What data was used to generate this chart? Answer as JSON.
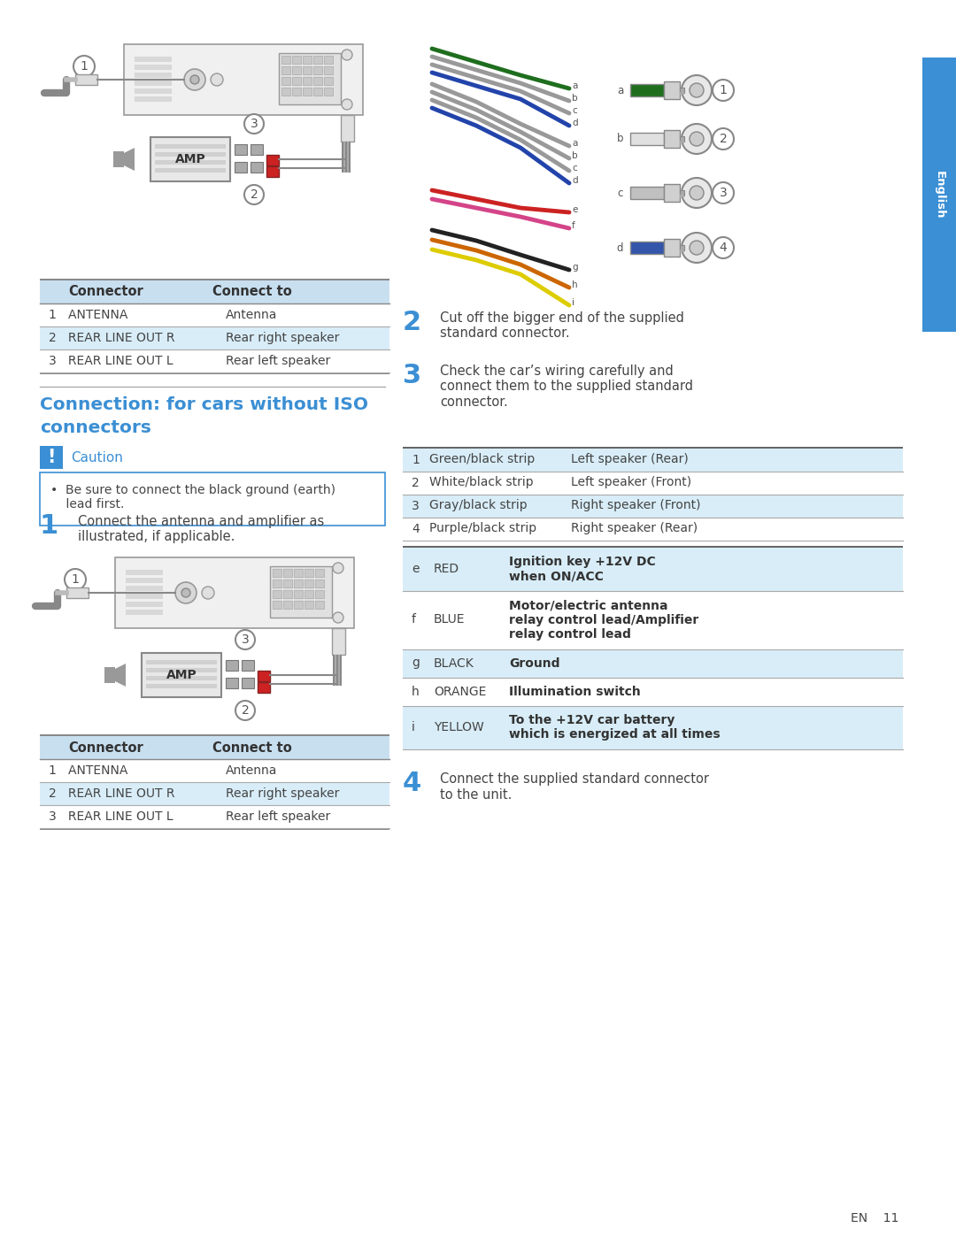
{
  "page_bg": "#ffffff",
  "sidebar_color": "#3b8fd4",
  "sidebar_text": "English",
  "table1_header": [
    "Connector",
    "Connect to"
  ],
  "table1_rows": [
    [
      "1   ANTENNA",
      "Antenna"
    ],
    [
      "2   REAR LINE OUT R",
      "Rear right speaker"
    ],
    [
      "3   REAR LINE OUT L",
      "Rear left speaker"
    ]
  ],
  "table_header_bg": "#c8dff0",
  "table_row_colors": [
    "#ffffff",
    "#d8edf8",
    "#ffffff"
  ],
  "section_title_line1": "Connection: for cars without ISO",
  "section_title_line2": "connectors",
  "section_title_color": "#3b8fd4",
  "caution_label": "Caution",
  "caution_label_color": "#3b8fd4",
  "caution_icon_bg": "#3b8fd4",
  "caution_text": "•  Be sure to connect the black ground (earth)\n    lead first.",
  "caution_box_border": "#3b8fd4",
  "step1_num": "1",
  "step1_text": "Connect the antenna and amplifier as\nillustrated, if applicable.",
  "step2_num": "2",
  "step2_text": "Cut off the bigger end of the supplied\nstandard connector.",
  "step3_num": "3",
  "step3_text": "Check the car’s wiring carefully and\nconnect them to the supplied standard\nconnector.",
  "step4_num": "4",
  "step4_text": "Connect the supplied standard connector\nto the unit.",
  "speaker_table_rows": [
    [
      "1",
      "Green/black strip",
      "Left speaker (Rear)"
    ],
    [
      "2",
      "White/black strip",
      "Left speaker (Front)"
    ],
    [
      "3",
      "Gray/black strip",
      "Right speaker (Front)"
    ],
    [
      "4",
      "Purple/black strip",
      "Right speaker (Rear)"
    ]
  ],
  "speaker_table_row_colors": [
    "#d8edf8",
    "#ffffff",
    "#d8edf8",
    "#ffffff"
  ],
  "wire_table_rows": [
    [
      "e",
      "RED",
      "Ignition key +12V DC\nwhen ON/ACC",
      "#d8edf8"
    ],
    [
      "f",
      "BLUE",
      "Motor/electric antenna\nrelay control lead/Amplifier\nrelay control lead",
      "#ffffff"
    ],
    [
      "g",
      "BLACK",
      "Ground",
      "#d8edf8"
    ],
    [
      "h",
      "ORANGE",
      "Illumination switch",
      "#ffffff"
    ],
    [
      "i",
      "YELLOW",
      "To the +12V car battery\nwhich is energized at all times",
      "#d8edf8"
    ]
  ],
  "footer_text": "EN    11",
  "text_color": "#444444",
  "dark_text": "#444444",
  "light_text": "#666666"
}
